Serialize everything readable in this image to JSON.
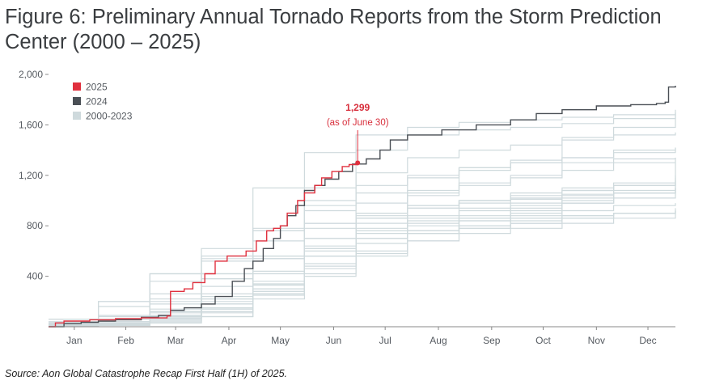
{
  "figure": {
    "title": "Figure 6: Preliminary Annual Tornado Reports from the Storm Prediction Center (2000 – 2025)",
    "source": "Source: Aon Global Catastrophe Recap First Half (1H) of 2025."
  },
  "colors": {
    "series_2025": "#e0303e",
    "series_2024": "#4a4f55",
    "series_history": "#cfdadd",
    "axis": "#888888",
    "text": "#555a60"
  },
  "chart_data": {
    "type": "line",
    "title": "Preliminary Annual Tornado Reports from the Storm Prediction Center (2000 – 2025)",
    "xlabel": "",
    "ylabel": "",
    "x_unit": "day of year",
    "xlim": [
      1,
      366
    ],
    "ylim": [
      0,
      2000
    ],
    "grid": false,
    "legend_position": "top-left",
    "y_ticks": [
      {
        "value": 400,
        "label": "400"
      },
      {
        "value": 800,
        "label": "800"
      },
      {
        "value": 1200,
        "label": "1,200"
      },
      {
        "value": 1600,
        "label": "1,600"
      },
      {
        "value": 2000,
        "label": "2,000"
      }
    ],
    "x_ticks": [
      {
        "value": 16,
        "label": "Jan"
      },
      {
        "value": 46,
        "label": "Feb"
      },
      {
        "value": 75,
        "label": "Mar"
      },
      {
        "value": 106,
        "label": "Apr"
      },
      {
        "value": 136,
        "label": "May"
      },
      {
        "value": 167,
        "label": "Jun"
      },
      {
        "value": 197,
        "label": "Jul"
      },
      {
        "value": 228,
        "label": "Aug"
      },
      {
        "value": 259,
        "label": "Sep"
      },
      {
        "value": 289,
        "label": "Oct"
      },
      {
        "value": 320,
        "label": "Nov"
      },
      {
        "value": 350,
        "label": "Dec"
      }
    ],
    "legend": [
      {
        "name": "2025",
        "color": "#e0303e"
      },
      {
        "name": "2024",
        "color": "#4a4f55"
      },
      {
        "name": "2000-2023",
        "color": "#cfdadd"
      }
    ],
    "annotation": {
      "x": 181,
      "y": 1299,
      "value_label": "1,299",
      "note": "(as of June 30)"
    },
    "series": [
      {
        "name": "2025",
        "style": "highlight",
        "color": "#e0303e",
        "x": [
          1,
          5,
          10,
          25,
          40,
          55,
          70,
          72,
          80,
          85,
          92,
          98,
          105,
          112,
          116,
          122,
          128,
          132,
          136,
          140,
          146,
          150,
          156,
          160,
          166,
          172,
          176,
          181
        ],
        "y": [
          0,
          30,
          45,
          55,
          65,
          70,
          85,
          280,
          300,
          350,
          420,
          520,
          560,
          560,
          600,
          680,
          760,
          780,
          800,
          900,
          1000,
          1060,
          1120,
          1180,
          1230,
          1270,
          1285,
          1299
        ]
      },
      {
        "name": "2024",
        "style": "highlight",
        "color": "#4a4f55",
        "x": [
          1,
          10,
          20,
          30,
          40,
          55,
          65,
          72,
          80,
          90,
          98,
          108,
          115,
          120,
          126,
          132,
          136,
          140,
          145,
          150,
          156,
          162,
          170,
          178,
          186,
          194,
          200,
          210,
          230,
          250,
          270,
          285,
          300,
          320,
          340,
          355,
          360,
          362,
          366
        ],
        "y": [
          0,
          25,
          35,
          45,
          55,
          75,
          90,
          130,
          150,
          180,
          240,
          360,
          460,
          520,
          620,
          700,
          800,
          880,
          960,
          1080,
          1120,
          1170,
          1230,
          1290,
          1330,
          1400,
          1480,
          1520,
          1560,
          1600,
          1640,
          1690,
          1720,
          1750,
          1760,
          1770,
          1780,
          1900,
          1910
        ]
      },
      {
        "name": "2000",
        "style": "history",
        "x": [
          1,
          30,
          60,
          90,
          120,
          150,
          180,
          210,
          240,
          270,
          300,
          330,
          366
        ],
        "y": [
          10,
          30,
          60,
          120,
          250,
          420,
          580,
          680,
          740,
          780,
          820,
          860,
          900
        ]
      },
      {
        "name": "2001",
        "style": "history",
        "x": [
          1,
          30,
          60,
          90,
          120,
          150,
          180,
          210,
          240,
          270,
          300,
          330,
          366
        ],
        "y": [
          15,
          40,
          90,
          180,
          330,
          560,
          740,
          860,
          920,
          960,
          1000,
          1060,
          1120
        ]
      },
      {
        "name": "2002",
        "style": "history",
        "x": [
          1,
          30,
          60,
          90,
          120,
          150,
          180,
          210,
          240,
          270,
          300,
          330,
          366
        ],
        "y": [
          10,
          25,
          70,
          150,
          340,
          620,
          760,
          820,
          860,
          880,
          920,
          960,
          980
        ]
      },
      {
        "name": "2003",
        "style": "history",
        "x": [
          1,
          30,
          60,
          90,
          120,
          150,
          180,
          210,
          240,
          270,
          300,
          330,
          366
        ],
        "y": [
          20,
          40,
          70,
          140,
          360,
          820,
          980,
          1080,
          1140,
          1180,
          1240,
          1300,
          1340
        ]
      },
      {
        "name": "2004",
        "style": "history",
        "x": [
          1,
          30,
          60,
          90,
          120,
          150,
          180,
          210,
          240,
          270,
          300,
          330,
          366
        ],
        "y": [
          5,
          20,
          50,
          110,
          260,
          560,
          860,
          1060,
          1260,
          1320,
          1480,
          1580,
          1720
        ]
      },
      {
        "name": "2005",
        "style": "history",
        "x": [
          1,
          30,
          60,
          90,
          120,
          150,
          180,
          210,
          240,
          270,
          300,
          330,
          366
        ],
        "y": [
          20,
          60,
          110,
          220,
          330,
          460,
          600,
          740,
          860,
          940,
          1040,
          1120,
          1200
        ]
      },
      {
        "name": "2006",
        "style": "history",
        "x": [
          1,
          30,
          60,
          90,
          120,
          150,
          180,
          210,
          240,
          270,
          300,
          330,
          366
        ],
        "y": [
          30,
          80,
          220,
          420,
          560,
          700,
          780,
          840,
          880,
          920,
          980,
          1060,
          1100
        ]
      },
      {
        "name": "2007",
        "style": "history",
        "x": [
          1,
          30,
          60,
          90,
          120,
          150,
          180,
          210,
          240,
          270,
          300,
          330,
          366
        ],
        "y": [
          20,
          60,
          180,
          320,
          560,
          780,
          880,
          940,
          980,
          1010,
          1050,
          1080,
          1100
        ]
      },
      {
        "name": "2008",
        "style": "history",
        "x": [
          1,
          30,
          60,
          90,
          120,
          150,
          180,
          210,
          240,
          270,
          300,
          330,
          366
        ],
        "y": [
          40,
          200,
          360,
          540,
          780,
          1100,
          1400,
          1520,
          1560,
          1580,
          1610,
          1650,
          1690
        ]
      },
      {
        "name": "2009",
        "style": "history",
        "x": [
          1,
          30,
          60,
          90,
          120,
          150,
          180,
          210,
          240,
          270,
          300,
          330,
          366
        ],
        "y": [
          5,
          40,
          120,
          260,
          440,
          700,
          860,
          940,
          1000,
          1060,
          1100,
          1140,
          1160
        ]
      },
      {
        "name": "2010",
        "style": "history",
        "x": [
          1,
          30,
          60,
          90,
          120,
          150,
          180,
          210,
          240,
          270,
          300,
          330,
          366
        ],
        "y": [
          5,
          15,
          40,
          120,
          280,
          560,
          900,
          1040,
          1120,
          1200,
          1300,
          1330,
          1340
        ]
      },
      {
        "name": "2011",
        "style": "history",
        "x": [
          1,
          30,
          60,
          90,
          120,
          150,
          180,
          210,
          240,
          270,
          300,
          330,
          366
        ],
        "y": [
          10,
          40,
          120,
          380,
          1100,
          1380,
          1520,
          1580,
          1620,
          1640,
          1660,
          1680,
          1700
        ]
      },
      {
        "name": "2012",
        "style": "history",
        "x": [
          1,
          30,
          60,
          90,
          120,
          150,
          180,
          210,
          240,
          270,
          300,
          330,
          366
        ],
        "y": [
          40,
          90,
          260,
          420,
          540,
          640,
          700,
          740,
          780,
          820,
          860,
          900,
          920
        ]
      },
      {
        "name": "2013",
        "style": "history",
        "x": [
          1,
          30,
          60,
          90,
          120,
          150,
          180,
          210,
          240,
          270,
          300,
          330,
          366
        ],
        "y": [
          20,
          60,
          90,
          140,
          300,
          560,
          700,
          760,
          800,
          820,
          860,
          900,
          920
        ]
      },
      {
        "name": "2014",
        "style": "history",
        "x": [
          1,
          30,
          60,
          90,
          120,
          150,
          180,
          210,
          240,
          270,
          300,
          330,
          366
        ],
        "y": [
          5,
          10,
          30,
          80,
          220,
          480,
          700,
          800,
          840,
          860,
          880,
          900,
          920
        ]
      },
      {
        "name": "2015",
        "style": "history",
        "x": [
          1,
          30,
          60,
          90,
          120,
          150,
          180,
          210,
          240,
          270,
          300,
          330,
          366
        ],
        "y": [
          5,
          15,
          30,
          80,
          260,
          620,
          860,
          960,
          1000,
          1020,
          1080,
          1120,
          1180
        ]
      },
      {
        "name": "2016",
        "style": "history",
        "x": [
          1,
          30,
          60,
          90,
          120,
          150,
          180,
          210,
          240,
          270,
          300,
          330,
          366
        ],
        "y": [
          10,
          60,
          140,
          220,
          420,
          600,
          700,
          760,
          800,
          840,
          880,
          900,
          940
        ]
      },
      {
        "name": "2017",
        "style": "history",
        "x": [
          1,
          30,
          60,
          90,
          120,
          150,
          180,
          210,
          240,
          270,
          300,
          330,
          366
        ],
        "y": [
          60,
          200,
          420,
          560,
          760,
          960,
          1120,
          1200,
          1260,
          1300,
          1340,
          1400,
          1420
        ]
      },
      {
        "name": "2018",
        "style": "history",
        "x": [
          1,
          30,
          60,
          90,
          120,
          150,
          180,
          210,
          240,
          270,
          300,
          330,
          366
        ],
        "y": [
          5,
          20,
          80,
          180,
          300,
          500,
          660,
          760,
          840,
          900,
          980,
          1020,
          1060
        ]
      },
      {
        "name": "2019",
        "style": "history",
        "x": [
          1,
          30,
          60,
          90,
          120,
          150,
          180,
          210,
          240,
          270,
          300,
          330,
          366
        ],
        "y": [
          10,
          40,
          120,
          240,
          540,
          1000,
          1220,
          1340,
          1400,
          1440,
          1500,
          1520,
          1540
        ]
      },
      {
        "name": "2020",
        "style": "history",
        "x": [
          1,
          30,
          60,
          90,
          120,
          150,
          180,
          210,
          240,
          270,
          300,
          330,
          366
        ],
        "y": [
          20,
          60,
          120,
          380,
          540,
          700,
          820,
          880,
          940,
          980,
          1020,
          1060,
          1100
        ]
      },
      {
        "name": "2021",
        "style": "history",
        "x": [
          1,
          30,
          60,
          90,
          120,
          150,
          180,
          210,
          240,
          270,
          300,
          330,
          366
        ],
        "y": [
          10,
          20,
          80,
          200,
          280,
          400,
          560,
          680,
          780,
          860,
          980,
          1060,
          1300
        ]
      },
      {
        "name": "2022",
        "style": "history",
        "x": [
          1,
          30,
          60,
          90,
          120,
          150,
          180,
          210,
          240,
          270,
          300,
          330,
          366
        ],
        "y": [
          30,
          60,
          200,
          520,
          680,
          820,
          900,
          960,
          1000,
          1040,
          1080,
          1120,
          1140
        ]
      },
      {
        "name": "2023",
        "style": "history",
        "x": [
          1,
          30,
          60,
          90,
          120,
          150,
          180,
          210,
          240,
          270,
          300,
          330,
          366
        ],
        "y": [
          60,
          160,
          420,
          620,
          760,
          920,
          1060,
          1180,
          1240,
          1300,
          1340,
          1380,
          1420
        ]
      }
    ]
  }
}
